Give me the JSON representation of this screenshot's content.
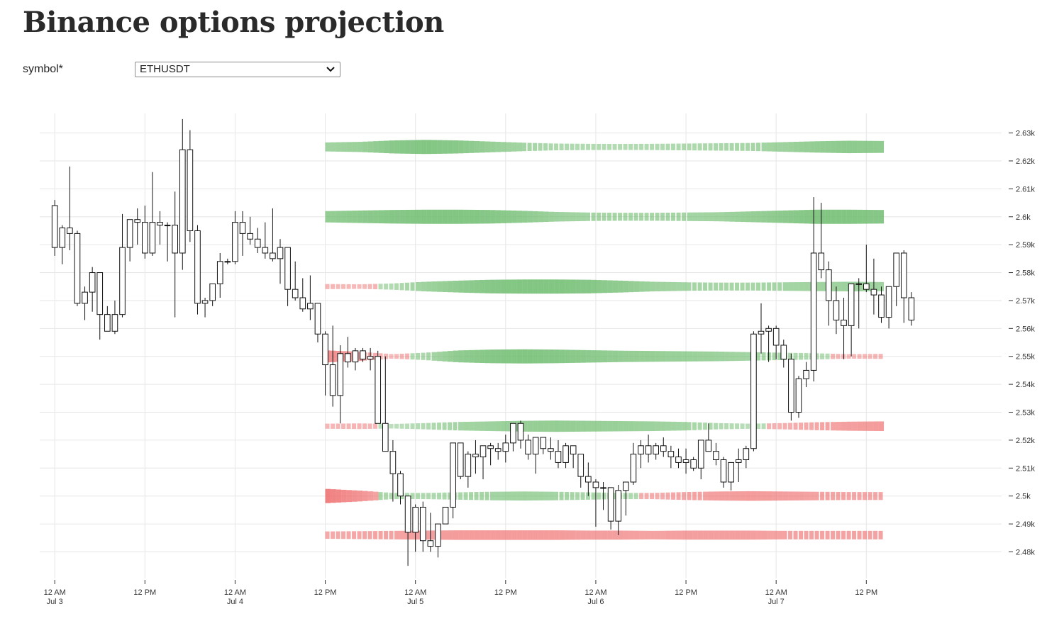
{
  "page": {
    "title": "Binance options projection",
    "symbol_label": "symbol*",
    "symbol_value": "ETHUSDT"
  },
  "colors": {
    "green": "#6dbb6d",
    "red": "#ee6b6b",
    "candle_stroke": "#111111",
    "grid": "#e6e6e6"
  },
  "chart_data": {
    "type": "candlestick",
    "title": "",
    "xlabel": "",
    "ylabel": "",
    "ylim": [
      2472,
      2637
    ],
    "x_range_hours": [
      -2,
      126
    ],
    "y_ticks": [
      {
        "value": 2480,
        "label": "2.48k"
      },
      {
        "value": 2490,
        "label": "2.49k"
      },
      {
        "value": 2500,
        "label": "2.5k"
      },
      {
        "value": 2510,
        "label": "2.51k"
      },
      {
        "value": 2520,
        "label": "2.52k"
      },
      {
        "value": 2530,
        "label": "2.53k"
      },
      {
        "value": 2540,
        "label": "2.54k"
      },
      {
        "value": 2550,
        "label": "2.55k"
      },
      {
        "value": 2560,
        "label": "2.56k"
      },
      {
        "value": 2570,
        "label": "2.57k"
      },
      {
        "value": 2580,
        "label": "2.58k"
      },
      {
        "value": 2590,
        "label": "2.59k"
      },
      {
        "value": 2600,
        "label": "2.6k"
      },
      {
        "value": 2610,
        "label": "2.61k"
      },
      {
        "value": 2620,
        "label": "2.62k"
      },
      {
        "value": 2630,
        "label": "2.63k"
      }
    ],
    "x_ticks": [
      {
        "hour": 0,
        "label": "12 AM",
        "date": "Jul 3"
      },
      {
        "hour": 12,
        "label": "12 PM",
        "date": ""
      },
      {
        "hour": 24,
        "label": "12 AM",
        "date": "Jul 4"
      },
      {
        "hour": 36,
        "label": "12 PM",
        "date": ""
      },
      {
        "hour": 48,
        "label": "12 AM",
        "date": "Jul 5"
      },
      {
        "hour": 60,
        "label": "12 PM",
        "date": ""
      },
      {
        "hour": 72,
        "label": "12 AM",
        "date": "Jul 6"
      },
      {
        "hour": 84,
        "label": "12 PM",
        "date": ""
      },
      {
        "hour": 96,
        "label": "12 AM",
        "date": "Jul 7"
      },
      {
        "hour": 108,
        "label": "12 PM",
        "date": ""
      }
    ],
    "candle_interval_hours": 1,
    "candles_ohlc": [
      [
        2604,
        2606,
        2586,
        2589
      ],
      [
        2589,
        2597,
        2583,
        2596
      ],
      [
        2596,
        2618,
        2588,
        2594
      ],
      [
        2594,
        2595,
        2568,
        2569
      ],
      [
        2569,
        2575,
        2563,
        2573
      ],
      [
        2573,
        2582,
        2566,
        2580
      ],
      [
        2580,
        2580,
        2556,
        2565
      ],
      [
        2565,
        2568,
        2559,
        2559
      ],
      [
        2559,
        2570,
        2558,
        2565
      ],
      [
        2565,
        2601,
        2564,
        2589
      ],
      [
        2589,
        2599,
        2584,
        2599
      ],
      [
        2599,
        2603,
        2590,
        2598
      ],
      [
        2598,
        2604,
        2585,
        2587
      ],
      [
        2587,
        2616,
        2586,
        2598
      ],
      [
        2598,
        2602,
        2590,
        2597
      ],
      [
        2597,
        2598,
        2584,
        2597
      ],
      [
        2597,
        2609,
        2564,
        2587
      ],
      [
        2587,
        2635,
        2581,
        2624
      ],
      [
        2624,
        2631,
        2591,
        2595
      ],
      [
        2595,
        2597,
        2565,
        2569
      ],
      [
        2569,
        2571,
        2564,
        2570
      ],
      [
        2570,
        2576,
        2568,
        2576
      ],
      [
        2576,
        2587,
        2571,
        2584
      ],
      [
        2584,
        2585,
        2583,
        2584
      ],
      [
        2584,
        2602,
        2583,
        2598
      ],
      [
        2598,
        2602,
        2586,
        2594
      ],
      [
        2594,
        2600,
        2590,
        2592
      ],
      [
        2592,
        2596,
        2587,
        2589
      ],
      [
        2589,
        2598,
        2585,
        2587
      ],
      [
        2587,
        2603,
        2584,
        2585
      ],
      [
        2585,
        2592,
        2576,
        2589
      ],
      [
        2589,
        2589,
        2568,
        2574
      ],
      [
        2574,
        2584,
        2570,
        2571
      ],
      [
        2571,
        2578,
        2566,
        2567
      ],
      [
        2567,
        2579,
        2563,
        2569
      ],
      [
        2569,
        2569,
        2555,
        2558
      ],
      [
        2558,
        2559,
        2536,
        2547
      ],
      [
        2547,
        2561,
        2532,
        2536
      ],
      [
        2536,
        2554,
        2526,
        2551
      ],
      [
        2551,
        2557,
        2546,
        2548
      ],
      [
        2548,
        2553,
        2545,
        2552
      ],
      [
        2552,
        2553,
        2548,
        2549
      ],
      [
        2549,
        2553,
        2545,
        2550
      ],
      [
        2550,
        2552,
        2526,
        2526
      ],
      [
        2526,
        2550,
        2520,
        2516
      ],
      [
        2516,
        2520,
        2498,
        2508
      ],
      [
        2508,
        2509,
        2497,
        2500
      ],
      [
        2500,
        2500,
        2475,
        2487
      ],
      [
        2487,
        2497,
        2480,
        2496
      ],
      [
        2496,
        2498,
        2480,
        2484
      ],
      [
        2484,
        2494,
        2480,
        2482
      ],
      [
        2482,
        2490,
        2478,
        2490
      ],
      [
        2490,
        2495,
        2490,
        2496
      ],
      [
        2496,
        2519,
        2492,
        2519
      ],
      [
        2519,
        2519,
        2506,
        2507
      ],
      [
        2507,
        2516,
        2503,
        2515
      ],
      [
        2515,
        2520,
        2508,
        2514
      ],
      [
        2514,
        2518,
        2506,
        2518
      ],
      [
        2518,
        2519,
        2511,
        2517
      ],
      [
        2517,
        2519,
        2513,
        2516
      ],
      [
        2516,
        2522,
        2512,
        2519
      ],
      [
        2519,
        2526,
        2516,
        2526
      ],
      [
        2526,
        2527,
        2517,
        2520
      ],
      [
        2520,
        2522,
        2513,
        2515
      ],
      [
        2515,
        2521,
        2508,
        2521
      ],
      [
        2521,
        2521,
        2515,
        2517
      ],
      [
        2517,
        2521,
        2513,
        2516
      ],
      [
        2516,
        2520,
        2510,
        2512
      ],
      [
        2512,
        2519,
        2510,
        2518
      ],
      [
        2518,
        2518,
        2510,
        2515
      ],
      [
        2515,
        2515,
        2503,
        2507
      ],
      [
        2507,
        2512,
        2500,
        2505
      ],
      [
        2505,
        2506,
        2489,
        2503
      ],
      [
        2503,
        2505,
        2495,
        2503
      ],
      [
        2503,
        2502,
        2488,
        2491
      ],
      [
        2491,
        2504,
        2486,
        2502
      ],
      [
        2502,
        2505,
        2493,
        2505
      ],
      [
        2505,
        2519,
        2504,
        2515
      ],
      [
        2515,
        2520,
        2510,
        2518
      ],
      [
        2518,
        2522,
        2512,
        2515
      ],
      [
        2515,
        2519,
        2513,
        2518
      ],
      [
        2518,
        2521,
        2514,
        2516
      ],
      [
        2516,
        2518,
        2510,
        2514
      ],
      [
        2514,
        2517,
        2510,
        2512
      ],
      [
        2512,
        2517,
        2508,
        2513
      ],
      [
        2513,
        2514,
        2509,
        2510
      ],
      [
        2510,
        2520,
        2506,
        2520
      ],
      [
        2520,
        2526,
        2516,
        2516
      ],
      [
        2516,
        2519,
        2511,
        2513
      ],
      [
        2513,
        2514,
        2503,
        2505
      ],
      [
        2505,
        2510,
        2502,
        2512
      ],
      [
        2512,
        2517,
        2505,
        2513
      ],
      [
        2513,
        2518,
        2510,
        2517
      ],
      [
        2517,
        2559,
        2516,
        2558
      ],
      [
        2558,
        2569,
        2551,
        2559
      ],
      [
        2559,
        2561,
        2548,
        2560
      ],
      [
        2560,
        2561,
        2549,
        2554
      ],
      [
        2554,
        2556,
        2546,
        2549
      ],
      [
        2549,
        2551,
        2527,
        2530
      ],
      [
        2530,
        2543,
        2528,
        2542
      ],
      [
        2542,
        2548,
        2539,
        2545
      ],
      [
        2545,
        2607,
        2541,
        2587
      ],
      [
        2587,
        2605,
        2578,
        2581
      ],
      [
        2581,
        2584,
        2561,
        2570
      ],
      [
        2570,
        2575,
        2558,
        2563
      ],
      [
        2563,
        2571,
        2549,
        2561
      ],
      [
        2561,
        2575,
        2550,
        2576
      ],
      [
        2576,
        2578,
        2560,
        2576
      ],
      [
        2576,
        2590,
        2573,
        2574
      ],
      [
        2574,
        2585,
        2565,
        2572
      ],
      [
        2572,
        2575,
        2562,
        2564
      ],
      [
        2564,
        2570,
        2560,
        2575
      ],
      [
        2575,
        2587,
        2568,
        2587
      ],
      [
        2587,
        2588,
        2562,
        2571
      ],
      [
        2571,
        2573,
        2561,
        2563
      ]
    ],
    "projection_levels": [
      {
        "strike": 2625,
        "widths": [
          0.55,
          0.65,
          0.9,
          1.0,
          0.9,
          0.7,
          0.5,
          0.35,
          0.3,
          0.28,
          0.3,
          0.35,
          0.4,
          0.45,
          0.6,
          0.75,
          0.85,
          0.8
        ],
        "signs": [
          "g",
          "g",
          "g",
          "g",
          "g",
          "g",
          "g",
          "g",
          "g",
          "g",
          "g",
          "g",
          "g",
          "g",
          "g",
          "g",
          "g",
          "g"
        ]
      },
      {
        "strike": 2600,
        "widths": [
          0.75,
          0.85,
          0.95,
          1.0,
          1.0,
          0.95,
          0.8,
          0.6,
          0.5,
          0.45,
          0.45,
          0.5,
          0.55,
          0.7,
          0.85,
          1.0,
          1.0,
          0.95
        ],
        "signs": [
          "g",
          "g",
          "g",
          "g",
          "g",
          "g",
          "g",
          "g",
          "g",
          "g",
          "g",
          "g",
          "g",
          "g",
          "g",
          "g",
          "g",
          "g"
        ]
      },
      {
        "strike": 2575,
        "widths": [
          0.2,
          0.15,
          0.3,
          0.6,
          0.8,
          0.95,
          1.0,
          1.0,
          0.95,
          0.8,
          0.6,
          0.5,
          0.45,
          0.45,
          0.5,
          0.55,
          0.6,
          0.55
        ],
        "signs": [
          "r",
          "r",
          "g",
          "g",
          "g",
          "g",
          "g",
          "g",
          "g",
          "g",
          "g",
          "g",
          "g",
          "g",
          "g",
          "g",
          "g",
          "g"
        ]
      },
      {
        "strike": 2550,
        "widths": [
          0.8,
          0.55,
          0.15,
          0.4,
          0.8,
          0.95,
          1.0,
          0.95,
          0.85,
          0.75,
          0.7,
          0.65,
          0.6,
          0.5,
          0.4,
          0.3,
          0.15,
          0.2
        ],
        "signs": [
          "r",
          "r",
          "r",
          "g",
          "g",
          "g",
          "g",
          "g",
          "g",
          "g",
          "g",
          "g",
          "g",
          "g",
          "g",
          "g",
          "r",
          "r"
        ]
      },
      {
        "strike": 2525,
        "widths": [
          0.2,
          0.25,
          0.15,
          0.3,
          0.5,
          0.6,
          0.7,
          0.75,
          0.7,
          0.65,
          0.6,
          0.5,
          0.3,
          0.2,
          0.3,
          0.45,
          0.55,
          0.6
        ],
        "signs": [
          "r",
          "r",
          "g",
          "g",
          "g",
          "g",
          "g",
          "g",
          "g",
          "g",
          "g",
          "g",
          "g",
          "g",
          "r",
          "r",
          "r",
          "r"
        ]
      },
      {
        "strike": 2500,
        "widths": [
          1.0,
          0.7,
          0.3,
          0.3,
          0.4,
          0.5,
          0.55,
          0.5,
          0.4,
          0.3,
          0.3,
          0.45,
          0.55,
          0.6,
          0.55,
          0.5,
          0.45,
          0.45
        ],
        "signs": [
          "r",
          "r",
          "g",
          "g",
          "g",
          "g",
          "g",
          "g",
          "g",
          "g",
          "r",
          "r",
          "r",
          "r",
          "r",
          "r",
          "r",
          "r"
        ]
      },
      {
        "strike": 2486,
        "widths": [
          0.4,
          0.45,
          0.5,
          0.55,
          0.6,
          0.6,
          0.6,
          0.6,
          0.55,
          0.55,
          0.5,
          0.55,
          0.55,
          0.55,
          0.5,
          0.5,
          0.5,
          0.5
        ],
        "signs": [
          "r",
          "r",
          "r",
          "r",
          "r",
          "r",
          "r",
          "r",
          "r",
          "r",
          "r",
          "r",
          "r",
          "r",
          "r",
          "r",
          "r",
          "r"
        ]
      }
    ],
    "projection_x_range_hours": [
      36,
      110.5
    ],
    "grid": true,
    "legend": "none"
  }
}
